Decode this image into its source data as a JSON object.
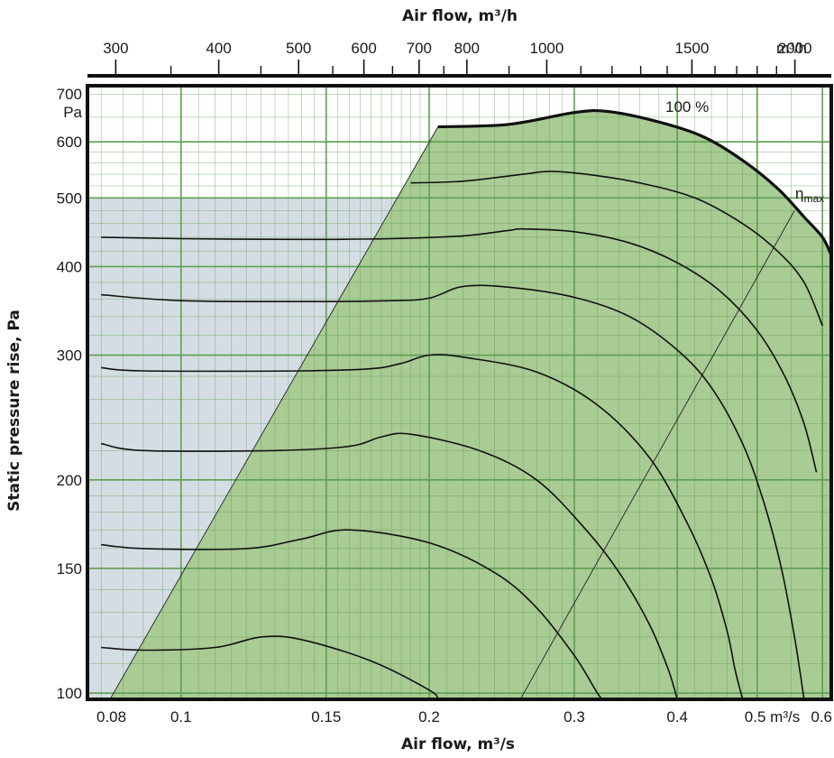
{
  "chart_data": {
    "type": "line",
    "title_top": "Air flow, m³/h",
    "xlabel": "Air flow, m³/s",
    "ylabel": "Static pressure rise, Pa",
    "x_scale": "log",
    "y_scale": "log",
    "xlim": [
      0.077,
      0.615
    ],
    "ylim": [
      98,
      720
    ],
    "grid": true,
    "colors": {
      "area_fill": "#a9cb94",
      "grey_fill": "#d5dde4",
      "grid_line": "#5e9f52",
      "curve": "#111111"
    },
    "bottom_ticks": [
      {
        "value": 0.08,
        "label": "0.08"
      },
      {
        "value": 0.1,
        "label": "0.1"
      },
      {
        "value": 0.15,
        "label": "0.15"
      },
      {
        "value": 0.2,
        "label": "0.2"
      },
      {
        "value": 0.3,
        "label": "0.3"
      },
      {
        "value": 0.4,
        "label": "0.4"
      },
      {
        "value": 0.5,
        "label": "0.5 m³/s"
      },
      {
        "value": 0.6,
        "label": "0.6"
      }
    ],
    "top_ticks": [
      {
        "value": 300,
        "label": "300"
      },
      {
        "value": 400,
        "label": "400"
      },
      {
        "value": 500,
        "label": "500"
      },
      {
        "value": 600,
        "label": "600"
      },
      {
        "value": 700,
        "label": "700"
      },
      {
        "value": 800,
        "label": "800"
      },
      {
        "value": 1000,
        "label": "1000"
      },
      {
        "value": 1500,
        "label": "1500"
      },
      {
        "value": 2000,
        "label": "2000"
      },
      {
        "value": 2180,
        "label": "m³/h"
      }
    ],
    "top_minor_ticks": [
      350,
      450,
      550,
      650,
      750,
      900,
      1100,
      1200,
      1300,
      1400,
      1600,
      1700,
      1800,
      1900
    ],
    "left_ticks": [
      {
        "value": 100,
        "label": "100"
      },
      {
        "value": 150,
        "label": "150"
      },
      {
        "value": 200,
        "label": "200"
      },
      {
        "value": 300,
        "label": "300"
      },
      {
        "value": 400,
        "label": "400"
      },
      {
        "value": 500,
        "label": "500"
      },
      {
        "value": 600,
        "label": "600"
      },
      {
        "value": 700,
        "label": "700"
      }
    ],
    "left_unit": "Pa",
    "x_grid_major": [
      0.1,
      0.15,
      0.2,
      0.3,
      0.4,
      0.5,
      0.6
    ],
    "x_grid_minor": [
      0.08,
      0.085,
      0.09,
      0.095,
      0.105,
      0.11,
      0.115,
      0.12,
      0.125,
      0.13,
      0.135,
      0.14,
      0.145,
      0.155,
      0.16,
      0.165,
      0.17,
      0.175,
      0.18,
      0.185,
      0.19,
      0.195,
      0.21,
      0.22,
      0.23,
      0.24,
      0.25,
      0.26,
      0.27,
      0.28,
      0.29,
      0.32,
      0.34,
      0.36,
      0.38,
      0.42,
      0.44,
      0.46,
      0.48,
      0.55
    ],
    "y_grid_major": [
      100,
      150,
      200,
      300,
      400,
      500,
      600
    ],
    "y_grid_minor": [
      110,
      120,
      130,
      140,
      160,
      170,
      180,
      190,
      220,
      240,
      260,
      280,
      320,
      340,
      360,
      380,
      420,
      440,
      460,
      480,
      520,
      540,
      560,
      580,
      650,
      700
    ],
    "grey_region": {
      "x_max": 0.19,
      "y_max": 500
    },
    "operating_area_boundary": [
      [
        0.082,
        98
      ],
      [
        0.205,
        630
      ]
    ],
    "outer_curve_label": "100 %",
    "eta_label": "η",
    "eta_subscript": "max",
    "eta_line": [
      [
        0.258,
        98
      ],
      [
        0.555,
        480
      ]
    ],
    "series": [
      {
        "points": [
          [
            0.205,
            630
          ],
          [
            0.25,
            635
          ],
          [
            0.3,
            660
          ],
          [
            0.33,
            662
          ],
          [
            0.38,
            640
          ],
          [
            0.43,
            610
          ],
          [
            0.48,
            565
          ],
          [
            0.53,
            515
          ],
          [
            0.57,
            470
          ],
          [
            0.6,
            440
          ],
          [
            0.615,
            415
          ]
        ]
      },
      {
        "points": [
          [
            0.19,
            525
          ],
          [
            0.22,
            528
          ],
          [
            0.26,
            540
          ],
          [
            0.28,
            545
          ],
          [
            0.31,
            540
          ],
          [
            0.36,
            525
          ],
          [
            0.42,
            500
          ],
          [
            0.48,
            460
          ],
          [
            0.53,
            420
          ],
          [
            0.57,
            380
          ],
          [
            0.6,
            330
          ]
        ]
      },
      {
        "points": [
          [
            0.08,
            440
          ],
          [
            0.1,
            438
          ],
          [
            0.14,
            437
          ],
          [
            0.18,
            438
          ],
          [
            0.22,
            442
          ],
          [
            0.25,
            450
          ],
          [
            0.26,
            452
          ],
          [
            0.3,
            448
          ],
          [
            0.35,
            432
          ],
          [
            0.4,
            405
          ],
          [
            0.45,
            370
          ],
          [
            0.5,
            325
          ],
          [
            0.54,
            280
          ],
          [
            0.57,
            240
          ],
          [
            0.59,
            205
          ]
        ]
      },
      {
        "points": [
          [
            0.08,
            365
          ],
          [
            0.1,
            358
          ],
          [
            0.14,
            357
          ],
          [
            0.18,
            358
          ],
          [
            0.2,
            361
          ],
          [
            0.22,
            375
          ],
          [
            0.25,
            374
          ],
          [
            0.3,
            362
          ],
          [
            0.35,
            340
          ],
          [
            0.4,
            305
          ],
          [
            0.44,
            270
          ],
          [
            0.48,
            225
          ],
          [
            0.51,
            185
          ],
          [
            0.535,
            150
          ],
          [
            0.555,
            120
          ],
          [
            0.57,
            98
          ]
        ]
      },
      {
        "points": [
          [
            0.08,
            288
          ],
          [
            0.09,
            285
          ],
          [
            0.14,
            285
          ],
          [
            0.17,
            287
          ],
          [
            0.185,
            292
          ],
          [
            0.2,
            300
          ],
          [
            0.22,
            298
          ],
          [
            0.27,
            284
          ],
          [
            0.32,
            255
          ],
          [
            0.37,
            215
          ],
          [
            0.41,
            175
          ],
          [
            0.44,
            145
          ],
          [
            0.46,
            122
          ],
          [
            0.47,
            108
          ],
          [
            0.48,
            98
          ]
        ]
      },
      {
        "points": [
          [
            0.08,
            225
          ],
          [
            0.09,
            220
          ],
          [
            0.13,
            220
          ],
          [
            0.16,
            223
          ],
          [
            0.175,
            230
          ],
          [
            0.19,
            232
          ],
          [
            0.23,
            220
          ],
          [
            0.27,
            200
          ],
          [
            0.31,
            170
          ],
          [
            0.34,
            148
          ],
          [
            0.37,
            125
          ],
          [
            0.39,
            108
          ],
          [
            0.4,
            98
          ]
        ]
      },
      {
        "points": [
          [
            0.08,
            162
          ],
          [
            0.09,
            160
          ],
          [
            0.12,
            160
          ],
          [
            0.14,
            165
          ],
          [
            0.16,
            170
          ],
          [
            0.2,
            163
          ],
          [
            0.24,
            148
          ],
          [
            0.27,
            132
          ],
          [
            0.3,
            113
          ],
          [
            0.32,
            100
          ],
          [
            0.325,
            98
          ]
        ]
      },
      {
        "points": [
          [
            0.08,
            116
          ],
          [
            0.09,
            115
          ],
          [
            0.11,
            116
          ],
          [
            0.125,
            120
          ],
          [
            0.14,
            119
          ],
          [
            0.17,
            111
          ],
          [
            0.2,
            101
          ],
          [
            0.205,
            98
          ]
        ]
      }
    ]
  }
}
